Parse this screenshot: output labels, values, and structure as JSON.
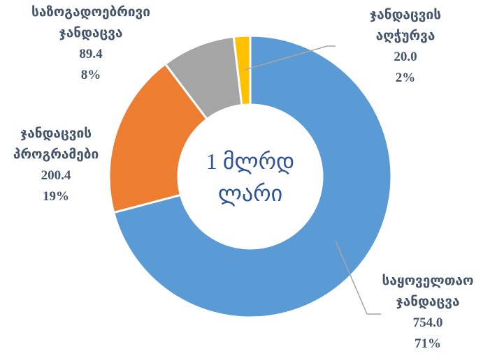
{
  "chart_data": {
    "type": "donut",
    "center_text": "1 მლრდ ლარი",
    "categories": [
      "საყოველთაო ჯანდაცვა",
      "ჯანდაცვის პროგრამები",
      "საზოგადოებრივი ჯანდაცვა",
      "ჯანდაცვის აღჭურვა"
    ],
    "values": [
      754.0,
      200.4,
      89.4,
      20.0
    ],
    "value_labels": [
      "754.0",
      "200.4",
      "89.4",
      "20.0"
    ],
    "percents": [
      71,
      19,
      8,
      2
    ],
    "percent_labels": [
      "71%",
      "19%",
      "8%",
      "2%"
    ],
    "colors": [
      "#5b9bd5",
      "#ed7d31",
      "#a5a5a5",
      "#ffc000"
    ]
  }
}
